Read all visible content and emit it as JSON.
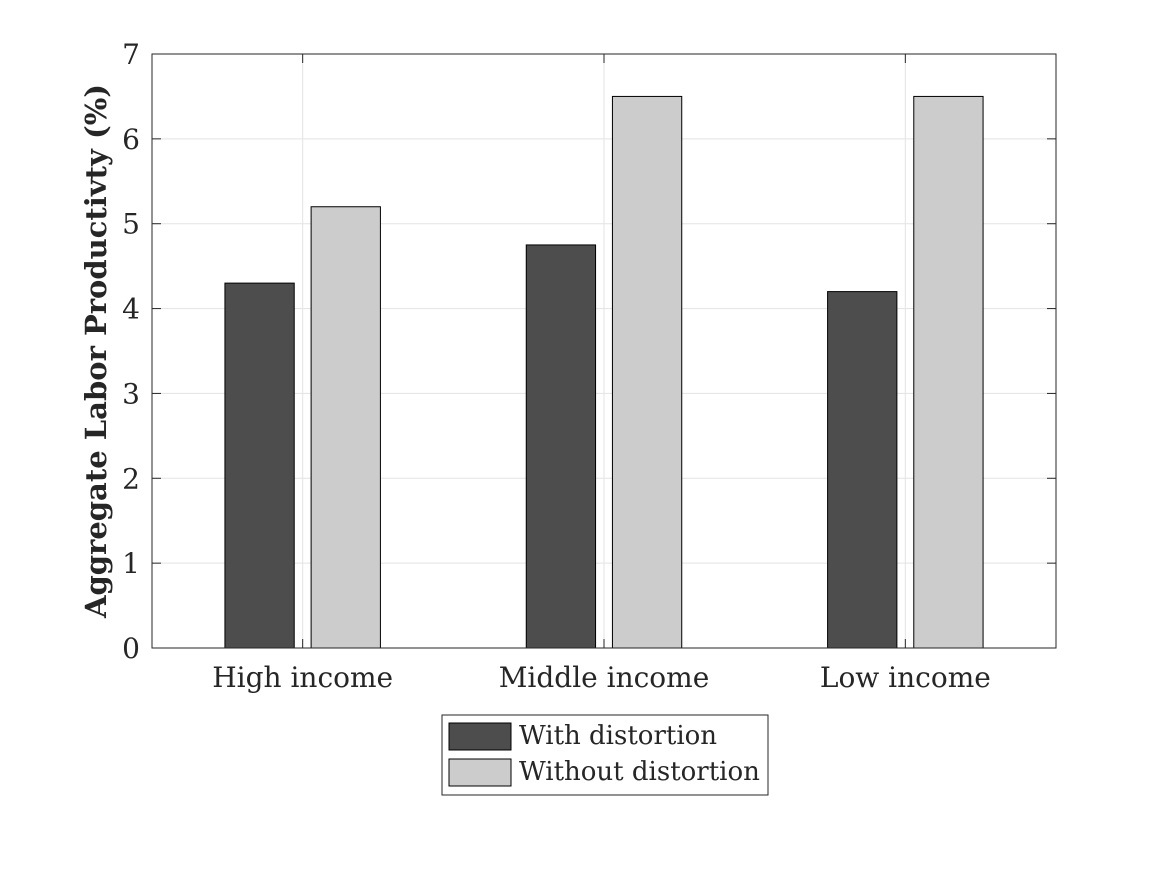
{
  "chart_data": {
    "type": "bar",
    "categories": [
      "High income",
      "Middle income",
      "Low income"
    ],
    "series": [
      {
        "name": "With distortion",
        "values": [
          4.3,
          4.75,
          4.2
        ],
        "color": "#4d4d4d"
      },
      {
        "name": "Without distortion",
        "values": [
          5.2,
          6.5,
          6.5
        ],
        "color": "#cccccc"
      }
    ],
    "xlabel": "",
    "ylabel": "Aggregate Labor Productivty (%)",
    "ylim": [
      0,
      7
    ],
    "yticks": [
      0,
      1,
      2,
      3,
      4,
      5,
      6,
      7
    ],
    "grid": true,
    "legend_position": "bottom-center"
  }
}
